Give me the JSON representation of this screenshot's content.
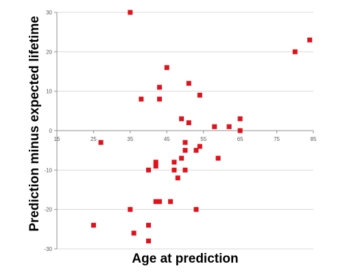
{
  "chart_data": {
    "type": "scatter",
    "title": "",
    "xlabel": "Age at prediction",
    "ylabel": "Prediction minus expected lifetime",
    "xlim": [
      15,
      85
    ],
    "ylim": [
      -30,
      30
    ],
    "x_ticks": [
      15,
      25,
      35,
      45,
      55,
      65,
      75,
      85
    ],
    "y_ticks": [
      30,
      20,
      10,
      0,
      -10,
      -20,
      -30
    ],
    "grid": "horizontal",
    "legend": "none",
    "marker": "square",
    "marker_color": "#e0121c",
    "points": [
      {
        "x": 35,
        "y": 30
      },
      {
        "x": 80,
        "y": 20
      },
      {
        "x": 84,
        "y": 23
      },
      {
        "x": 45,
        "y": 16
      },
      {
        "x": 51,
        "y": 12
      },
      {
        "x": 43,
        "y": 11
      },
      {
        "x": 38,
        "y": 8
      },
      {
        "x": 43,
        "y": 8
      },
      {
        "x": 54,
        "y": 9
      },
      {
        "x": 49,
        "y": 3
      },
      {
        "x": 51,
        "y": 2
      },
      {
        "x": 58,
        "y": 1
      },
      {
        "x": 62,
        "y": 1
      },
      {
        "x": 65,
        "y": 3
      },
      {
        "x": 65,
        "y": 0
      },
      {
        "x": 27,
        "y": -3
      },
      {
        "x": 50,
        "y": -3
      },
      {
        "x": 50,
        "y": -5
      },
      {
        "x": 53,
        "y": -5
      },
      {
        "x": 54,
        "y": -4
      },
      {
        "x": 49,
        "y": -7
      },
      {
        "x": 59,
        "y": -7
      },
      {
        "x": 42,
        "y": -8
      },
      {
        "x": 42,
        "y": -9
      },
      {
        "x": 47,
        "y": -8
      },
      {
        "x": 40,
        "y": -10
      },
      {
        "x": 47,
        "y": -10
      },
      {
        "x": 50,
        "y": -10
      },
      {
        "x": 48,
        "y": -12
      },
      {
        "x": 42,
        "y": -18
      },
      {
        "x": 43,
        "y": -18
      },
      {
        "x": 46,
        "y": -18
      },
      {
        "x": 35,
        "y": -20
      },
      {
        "x": 53,
        "y": -20
      },
      {
        "x": 25,
        "y": -24
      },
      {
        "x": 40,
        "y": -24
      },
      {
        "x": 36,
        "y": -26
      },
      {
        "x": 40,
        "y": -28
      }
    ]
  }
}
